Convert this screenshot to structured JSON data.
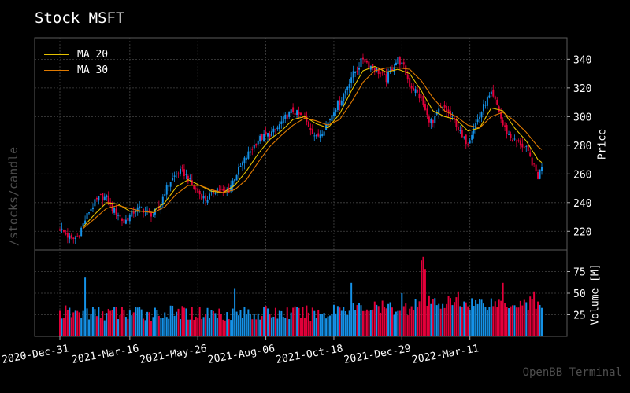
{
  "title": "Stock MSFT",
  "side_label": "/stocks/candle",
  "footer": "OpenBB Terminal",
  "colors": {
    "up": "#1592e8",
    "down": "#e4003a",
    "ma20": "#e5c100",
    "ma30": "#e07a00",
    "grid": "#444444",
    "frame": "#5a5a5a"
  },
  "chart_data": {
    "type": "candlestick",
    "price": {
      "ylabel": "Price",
      "yticks": [
        220,
        240,
        260,
        280,
        300,
        320,
        340
      ],
      "ylim": [
        207,
        355
      ]
    },
    "volume": {
      "ylabel": "Volume [M]",
      "yticks": [
        25,
        50,
        75
      ],
      "ylim": [
        0,
        100
      ]
    },
    "xticks": [
      "2020-Dec-31",
      "2021-Mar-16",
      "2021-May-26",
      "2021-Aug-06",
      "2021-Oct-18",
      "2021-Dec-29",
      "2022-Mar-11"
    ],
    "legend": [
      {
        "name": "MA 20",
        "color": "#e5c100"
      },
      {
        "name": "MA 30",
        "color": "#e07a00"
      }
    ],
    "legend_position": "top-left",
    "grid": true,
    "close_series": [
      [
        0,
        222
      ],
      [
        3,
        218
      ],
      [
        6,
        214
      ],
      [
        9,
        216
      ],
      [
        12,
        225
      ],
      [
        15,
        234
      ],
      [
        18,
        240
      ],
      [
        21,
        244
      ],
      [
        24,
        243
      ],
      [
        27,
        236
      ],
      [
        30,
        232
      ],
      [
        33,
        226
      ],
      [
        36,
        231
      ],
      [
        39,
        235
      ],
      [
        42,
        236
      ],
      [
        45,
        233
      ],
      [
        48,
        232
      ],
      [
        51,
        236
      ],
      [
        54,
        248
      ],
      [
        57,
        255
      ],
      [
        60,
        260
      ],
      [
        63,
        262
      ],
      [
        66,
        257
      ],
      [
        69,
        250
      ],
      [
        72,
        246
      ],
      [
        75,
        242
      ],
      [
        78,
        246
      ],
      [
        81,
        250
      ],
      [
        84,
        247
      ],
      [
        87,
        249
      ],
      [
        90,
        258
      ],
      [
        93,
        265
      ],
      [
        96,
        272
      ],
      [
        99,
        278
      ],
      [
        102,
        284
      ],
      [
        105,
        286
      ],
      [
        108,
        288
      ],
      [
        111,
        290
      ],
      [
        114,
        296
      ],
      [
        117,
        301
      ],
      [
        120,
        304
      ],
      [
        123,
        301
      ],
      [
        126,
        298
      ],
      [
        129,
        292
      ],
      [
        132,
        285
      ],
      [
        135,
        290
      ],
      [
        138,
        296
      ],
      [
        141,
        305
      ],
      [
        144,
        310
      ],
      [
        147,
        318
      ],
      [
        150,
        328
      ],
      [
        153,
        333
      ],
      [
        156,
        341
      ],
      [
        159,
        336
      ],
      [
        162,
        334
      ],
      [
        165,
        330
      ],
      [
        168,
        326
      ],
      [
        171,
        334
      ],
      [
        174,
        340
      ],
      [
        177,
        334
      ],
      [
        180,
        322
      ],
      [
        183,
        318
      ],
      [
        186,
        312
      ],
      [
        189,
        300
      ],
      [
        192,
        295
      ],
      [
        195,
        304
      ],
      [
        198,
        306
      ],
      [
        201,
        300
      ],
      [
        204,
        295
      ],
      [
        207,
        285
      ],
      [
        210,
        282
      ],
      [
        213,
        293
      ],
      [
        216,
        300
      ],
      [
        219,
        310
      ],
      [
        222,
        315
      ],
      [
        225,
        308
      ],
      [
        228,
        294
      ],
      [
        231,
        287
      ],
      [
        234,
        283
      ],
      [
        237,
        281
      ],
      [
        240,
        277
      ],
      [
        243,
        268
      ],
      [
        246,
        258
      ],
      [
        248,
        266
      ]
    ],
    "ma20_series": [
      [
        12,
        223
      ],
      [
        18,
        232
      ],
      [
        24,
        240
      ],
      [
        30,
        239
      ],
      [
        36,
        234
      ],
      [
        42,
        234
      ],
      [
        48,
        234
      ],
      [
        54,
        240
      ],
      [
        60,
        251
      ],
      [
        66,
        256
      ],
      [
        72,
        252
      ],
      [
        78,
        248
      ],
      [
        84,
        247
      ],
      [
        90,
        252
      ],
      [
        96,
        262
      ],
      [
        102,
        274
      ],
      [
        108,
        284
      ],
      [
        114,
        290
      ],
      [
        120,
        298
      ],
      [
        126,
        300
      ],
      [
        132,
        295
      ],
      [
        138,
        292
      ],
      [
        144,
        302
      ],
      [
        150,
        318
      ],
      [
        156,
        332
      ],
      [
        162,
        335
      ],
      [
        168,
        331
      ],
      [
        174,
        333
      ],
      [
        180,
        330
      ],
      [
        186,
        318
      ],
      [
        192,
        304
      ],
      [
        198,
        300
      ],
      [
        204,
        298
      ],
      [
        210,
        290
      ],
      [
        216,
        292
      ],
      [
        222,
        306
      ],
      [
        228,
        304
      ],
      [
        234,
        292
      ],
      [
        240,
        283
      ],
      [
        246,
        270
      ],
      [
        248,
        268
      ]
    ],
    "ma30_series": [
      [
        12,
        222
      ],
      [
        18,
        229
      ],
      [
        24,
        236
      ],
      [
        30,
        238
      ],
      [
        36,
        236
      ],
      [
        42,
        234
      ],
      [
        48,
        233
      ],
      [
        54,
        237
      ],
      [
        60,
        246
      ],
      [
        66,
        252
      ],
      [
        72,
        252
      ],
      [
        78,
        249
      ],
      [
        84,
        247
      ],
      [
        90,
        249
      ],
      [
        96,
        256
      ],
      [
        102,
        268
      ],
      [
        108,
        279
      ],
      [
        114,
        287
      ],
      [
        120,
        294
      ],
      [
        126,
        299
      ],
      [
        132,
        297
      ],
      [
        138,
        294
      ],
      [
        144,
        298
      ],
      [
        150,
        310
      ],
      [
        156,
        324
      ],
      [
        162,
        332
      ],
      [
        168,
        334
      ],
      [
        174,
        334
      ],
      [
        180,
        333
      ],
      [
        186,
        325
      ],
      [
        192,
        313
      ],
      [
        198,
        304
      ],
      [
        204,
        300
      ],
      [
        210,
        294
      ],
      [
        216,
        292
      ],
      [
        222,
        300
      ],
      [
        228,
        303
      ],
      [
        234,
        297
      ],
      [
        240,
        289
      ],
      [
        246,
        279
      ],
      [
        248,
        277
      ]
    ]
  }
}
